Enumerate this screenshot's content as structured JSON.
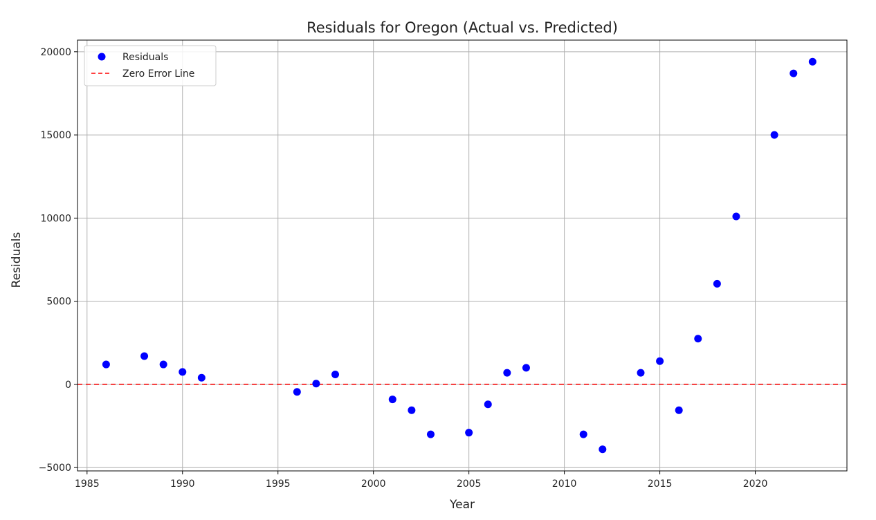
{
  "chart_data": {
    "type": "scatter",
    "title": "Residuals for Oregon (Actual vs. Predicted)",
    "xlabel": "Year",
    "ylabel": "Residuals",
    "xlim": [
      1984.5,
      2024.8
    ],
    "ylim": [
      -5200,
      20700
    ],
    "x_ticks": [
      1985,
      1990,
      1995,
      2000,
      2005,
      2010,
      2015,
      2020
    ],
    "y_ticks": [
      -5000,
      0,
      5000,
      10000,
      15000,
      20000
    ],
    "grid": true,
    "legend_position": "top-left",
    "series": [
      {
        "name": "Residuals",
        "kind": "scatter",
        "color": "#0000ff",
        "x": [
          1986,
          1988,
          1989,
          1990,
          1991,
          1996,
          1997,
          1998,
          2001,
          2002,
          2003,
          2005,
          2006,
          2007,
          2008,
          2011,
          2012,
          2014,
          2015,
          2016,
          2017,
          2018,
          2019,
          2021,
          2022,
          2023
        ],
        "y": [
          1200,
          1700,
          1200,
          750,
          400,
          -450,
          50,
          600,
          -900,
          -1550,
          -3000,
          -2900,
          -1200,
          700,
          1000,
          -3000,
          -3900,
          700,
          1400,
          -1550,
          2750,
          6050,
          10100,
          15000,
          18700,
          19400
        ]
      }
    ],
    "reference_lines": [
      {
        "name": "Zero Error Line",
        "y": 0,
        "color": "#ff0000",
        "style": "dashed"
      }
    ]
  }
}
